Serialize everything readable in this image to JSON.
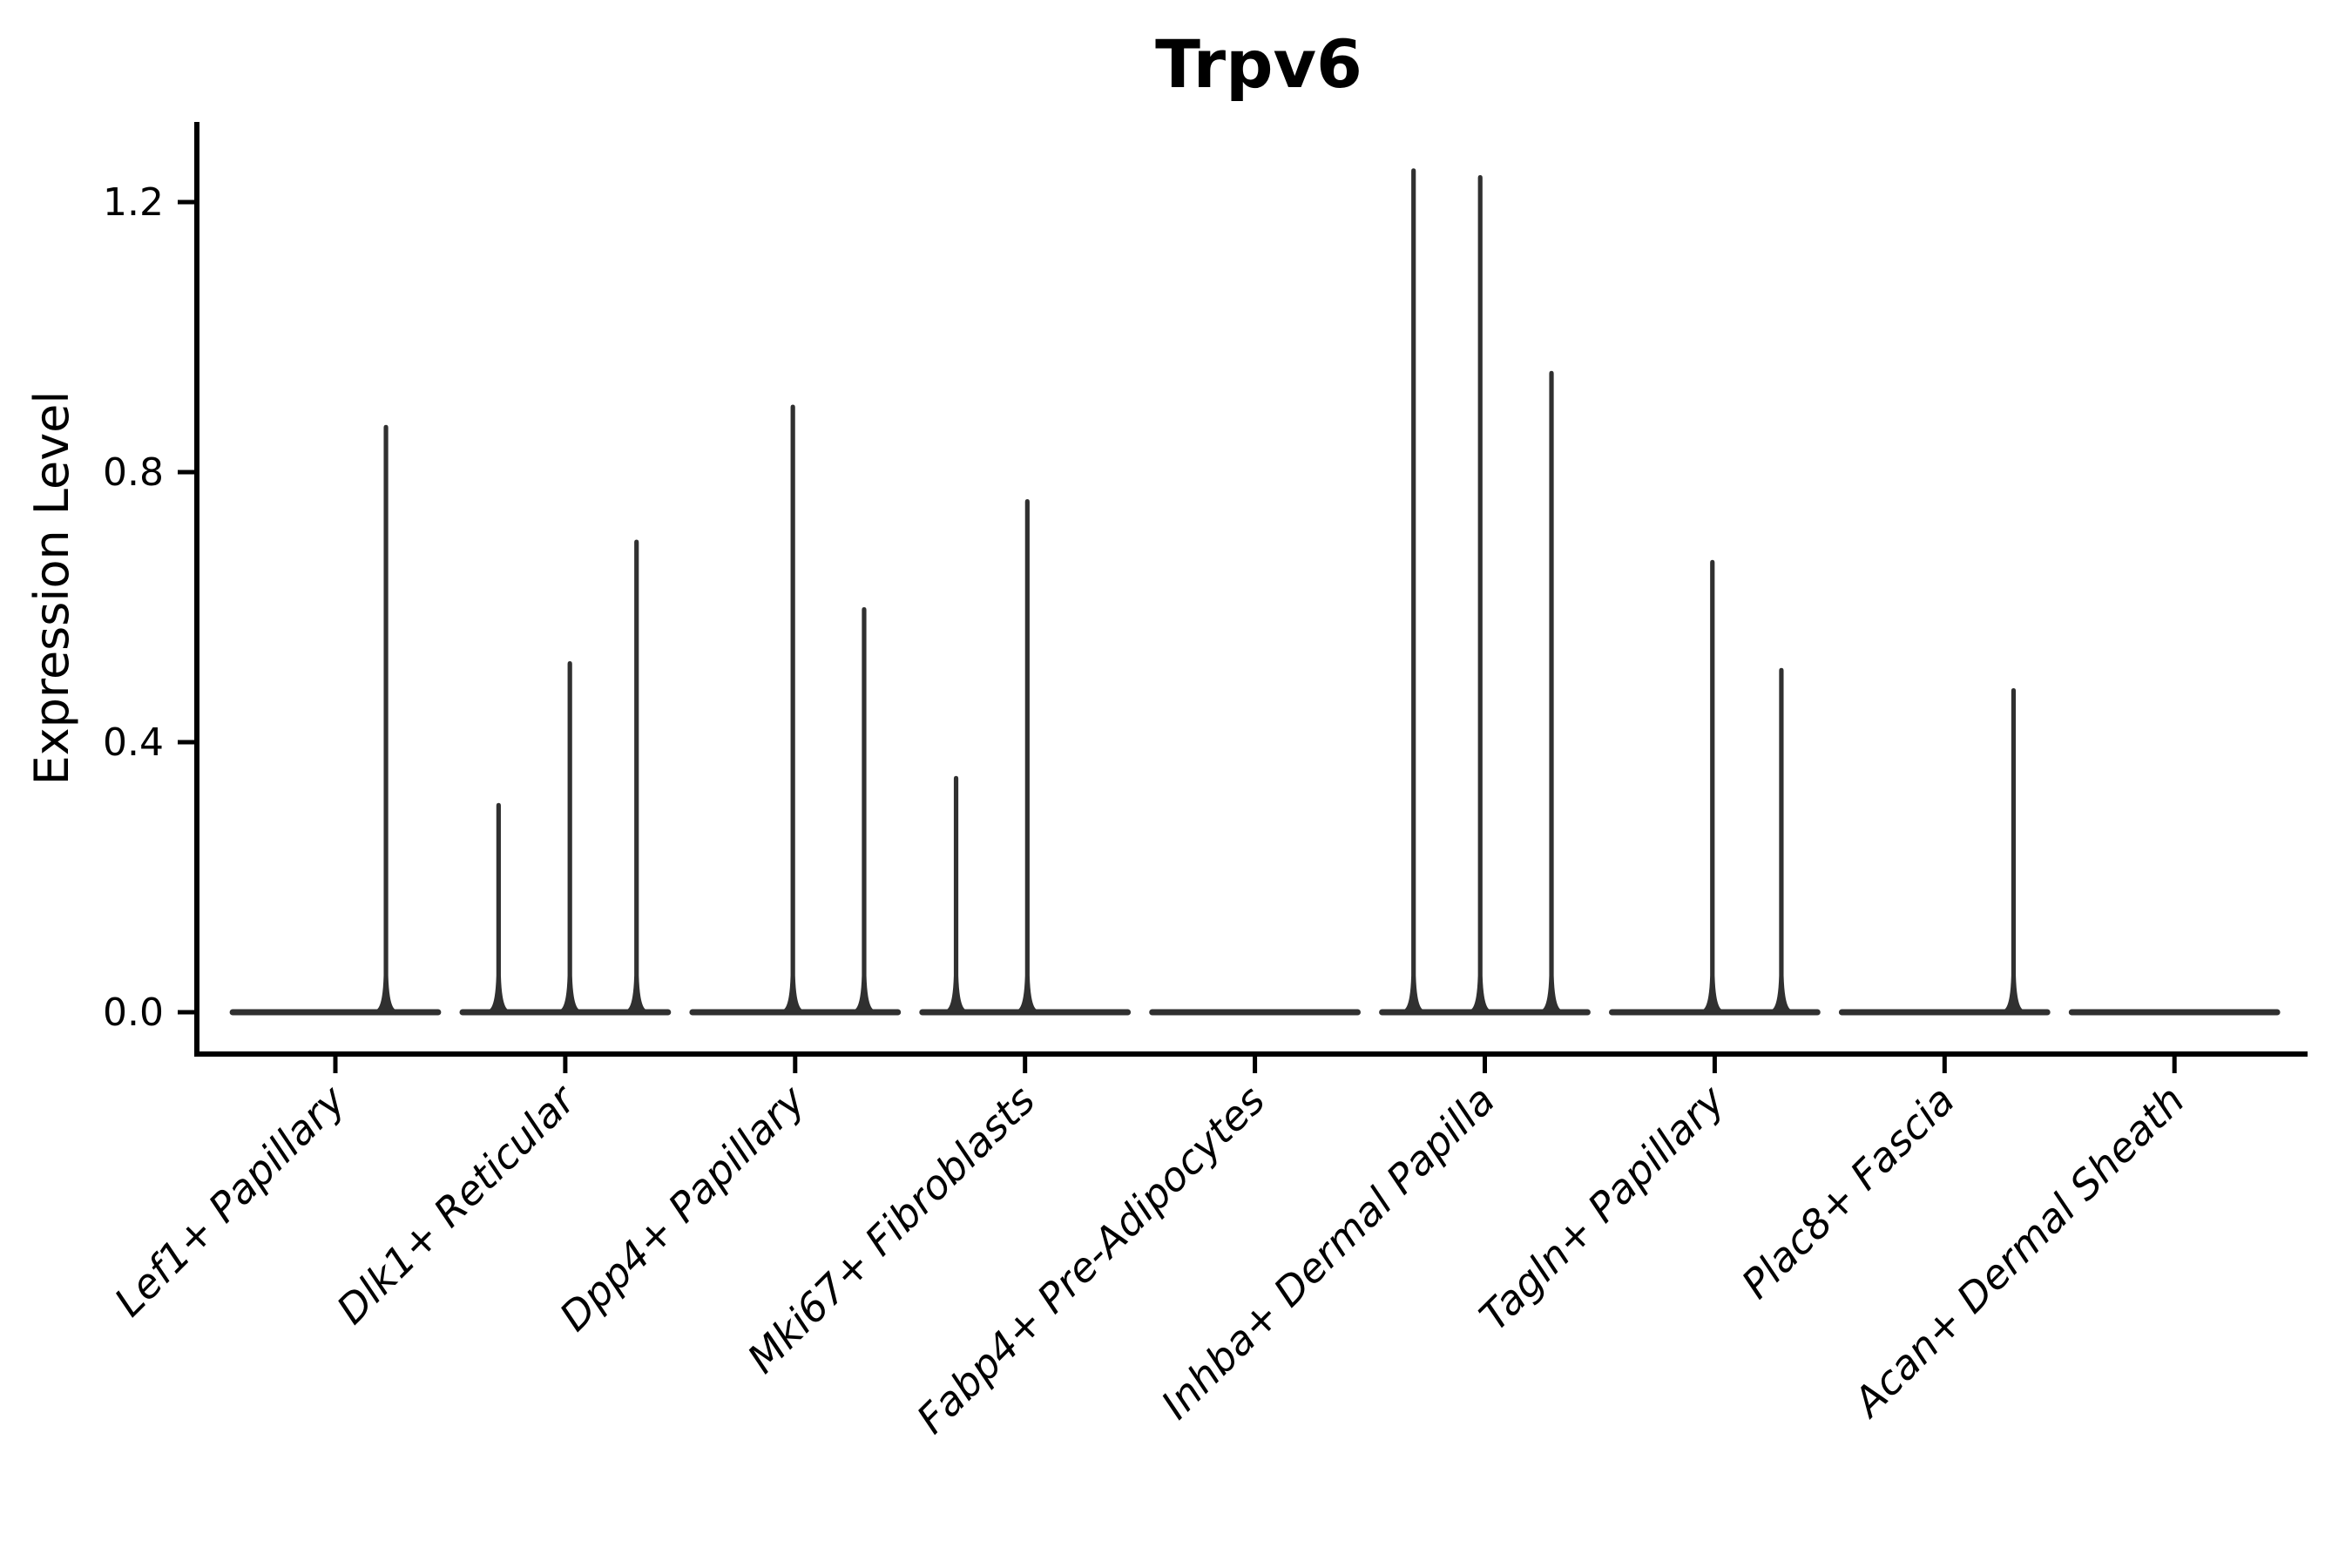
{
  "figure": {
    "title": "Trpv6",
    "y_axis_label": "Expression Level",
    "background_color": "#ffffff",
    "text_color": "#000000",
    "axis_color": "#000000",
    "violin_color": "#303030"
  },
  "chart_data": {
    "type": "violin",
    "title": "Trpv6",
    "xlabel": "",
    "ylabel": "Expression Level",
    "ylim": [
      -0.06,
      1.32
    ],
    "yticks": [
      0,
      0.4,
      0.8,
      1.2
    ],
    "ytick_labels": [
      "0.0",
      "0.4",
      "0.8",
      "1.2"
    ],
    "grid": false,
    "legend_position": "none",
    "x_tick_rotation_deg": 45,
    "x_tick_style": "italic",
    "violin_halfwidth_frac": 0.46,
    "categories": [
      "Lef1+ Papillary",
      "Dlk1+ Reticular",
      "Dpp4+ Papillary",
      "Mki67+ Fibroblasts",
      "Fabp4+ Pre-Adipocytes",
      "Inhba+ Dermal Papilla",
      "Tagln+ Papillary",
      "Plac8+ Fascia",
      "Acan+ Dermal Sheath"
    ],
    "series": [
      {
        "category": "Lef1+ Papillary",
        "baseline": 0.0,
        "spikes": [
          {
            "value": 0.87,
            "offset_frac": 0.22
          }
        ]
      },
      {
        "category": "Dlk1+ Reticular",
        "baseline": 0.0,
        "spikes": [
          {
            "value": 0.31,
            "offset_frac": -0.29
          },
          {
            "value": 0.52,
            "offset_frac": 0.02
          },
          {
            "value": 0.7,
            "offset_frac": 0.31
          }
        ]
      },
      {
        "category": "Dpp4+ Papillary",
        "baseline": 0.0,
        "spikes": [
          {
            "value": 0.9,
            "offset_frac": -0.01
          },
          {
            "value": 0.6,
            "offset_frac": 0.3
          }
        ]
      },
      {
        "category": "Mki67+ Fibroblasts",
        "baseline": 0.0,
        "spikes": [
          {
            "value": 0.35,
            "offset_frac": -0.3
          },
          {
            "value": 0.76,
            "offset_frac": 0.01
          }
        ]
      },
      {
        "category": "Fabp4+ Pre-Adipocytes",
        "baseline": 0.0,
        "spikes": []
      },
      {
        "category": "Inhba+ Dermal Papilla",
        "baseline": 0.0,
        "spikes": [
          {
            "value": 1.25,
            "offset_frac": -0.31
          },
          {
            "value": 1.24,
            "offset_frac": -0.02
          },
          {
            "value": 0.95,
            "offset_frac": 0.29
          }
        ]
      },
      {
        "category": "Tagln+ Papillary",
        "baseline": 0.0,
        "spikes": [
          {
            "value": 0.67,
            "offset_frac": -0.01
          },
          {
            "value": 0.51,
            "offset_frac": 0.29
          }
        ]
      },
      {
        "category": "Plac8+ Fascia",
        "baseline": 0.0,
        "spikes": [
          {
            "value": 0.48,
            "offset_frac": 0.3
          }
        ]
      },
      {
        "category": "Acan+ Dermal Sheath",
        "baseline": 0.0,
        "spikes": []
      }
    ]
  }
}
